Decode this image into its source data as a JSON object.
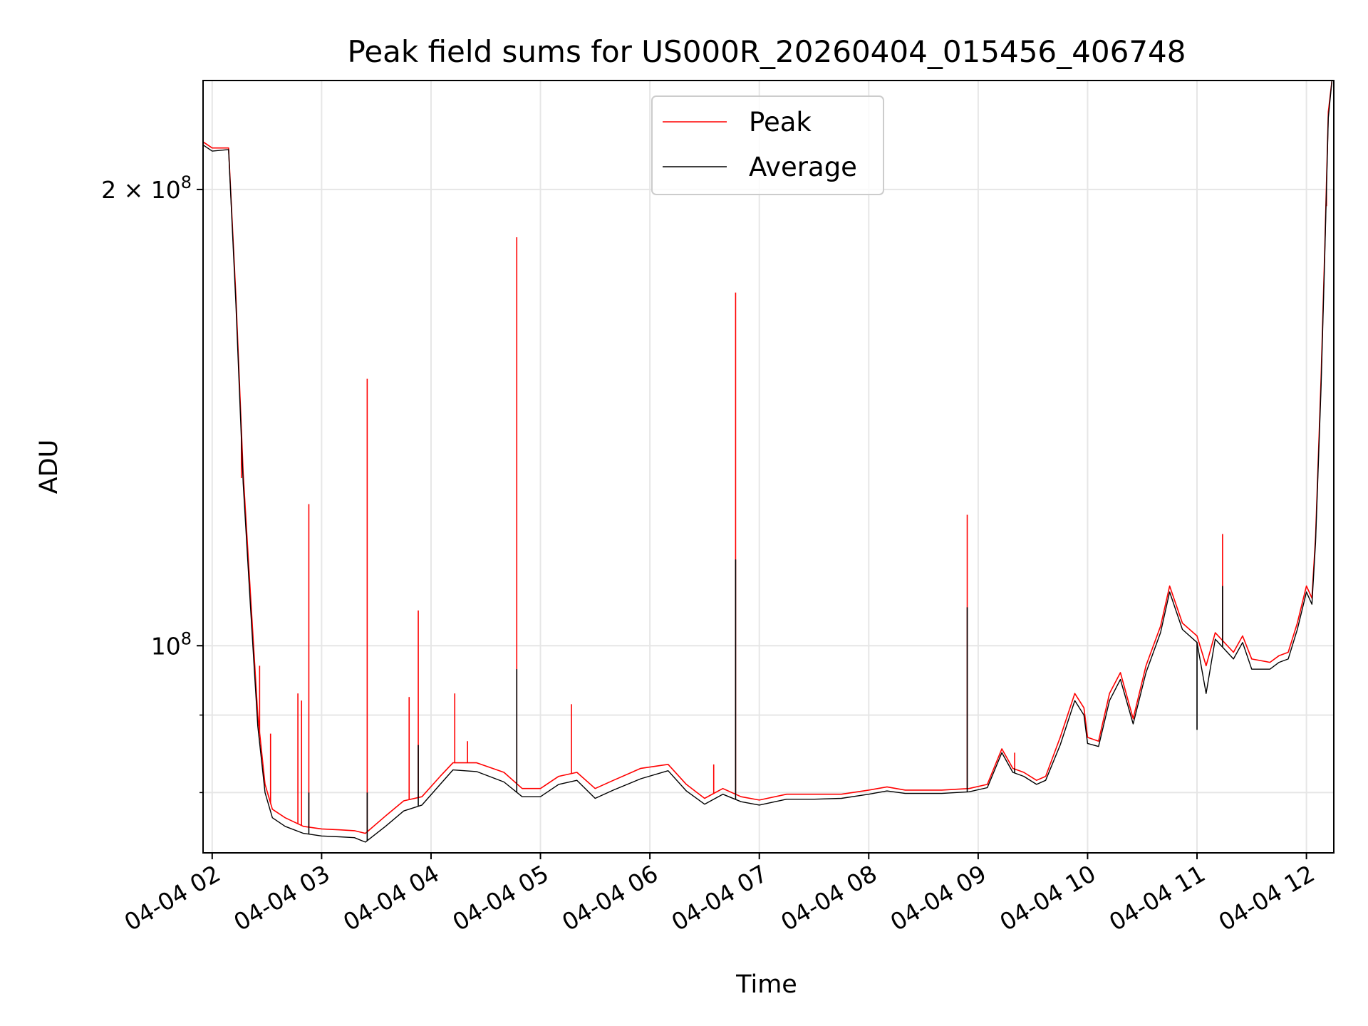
{
  "chart_data": {
    "type": "line",
    "title": "Peak field sums for US000R_20260404_015456_406748",
    "xlabel": "Time",
    "ylabel": "ADU",
    "yscale": "log",
    "grid": true,
    "legend_position": "top-center",
    "x_range": [
      "2026-04-04 01:55",
      "2026-04-04 12:15"
    ],
    "ylim": [
      73000000,
      236000000
    ],
    "x_ticks": [
      {
        "value": "2026-04-04 02:00",
        "label": "04-04 02"
      },
      {
        "value": "2026-04-04 03:00",
        "label": "04-04 03"
      },
      {
        "value": "2026-04-04 04:00",
        "label": "04-04 04"
      },
      {
        "value": "2026-04-04 05:00",
        "label": "04-04 05"
      },
      {
        "value": "2026-04-04 06:00",
        "label": "04-04 06"
      },
      {
        "value": "2026-04-04 07:00",
        "label": "04-04 07"
      },
      {
        "value": "2026-04-04 08:00",
        "label": "04-04 08"
      },
      {
        "value": "2026-04-04 09:00",
        "label": "04-04 09"
      },
      {
        "value": "2026-04-04 10:00",
        "label": "04-04 10"
      },
      {
        "value": "2026-04-04 11:00",
        "label": "04-04 11"
      },
      {
        "value": "2026-04-04 12:00",
        "label": "04-04 12"
      }
    ],
    "y_major_ticks": [
      {
        "value": 100000000,
        "base": "10",
        "exp": "8",
        "coef": ""
      },
      {
        "value": 200000000,
        "base": "10",
        "exp": "8",
        "coef": "2 × "
      }
    ],
    "y_minor_ticks": [
      80000000,
      90000000
    ],
    "series": [
      {
        "name": "Peak",
        "color": "#ff0000",
        "baseline": [
          [
            "2026-04-04 01:55",
            215000000
          ],
          [
            "2026-04-04 02:00",
            213000000
          ],
          [
            "2026-04-04 02:09",
            213000000
          ],
          [
            "2026-04-04 02:13",
            170000000
          ],
          [
            "2026-04-04 02:17",
            130000000
          ],
          [
            "2026-04-04 02:21",
            108000000
          ],
          [
            "2026-04-04 02:25",
            90000000
          ],
          [
            "2026-04-04 02:29",
            81000000
          ],
          [
            "2026-04-04 02:33",
            78000000
          ],
          [
            "2026-04-04 02:40",
            77000000
          ],
          [
            "2026-04-04 02:50",
            76000000
          ],
          [
            "2026-04-04 03:00",
            75700000
          ],
          [
            "2026-04-04 03:10",
            75600000
          ],
          [
            "2026-04-04 03:18",
            75500000
          ],
          [
            "2026-04-04 03:24",
            75200000
          ],
          [
            "2026-04-04 03:35",
            77200000
          ],
          [
            "2026-04-04 03:45",
            79000000
          ],
          [
            "2026-04-04 03:55",
            79500000
          ],
          [
            "2026-04-04 04:05",
            82000000
          ],
          [
            "2026-04-04 04:12",
            83700000
          ],
          [
            "2026-04-04 04:25",
            83700000
          ],
          [
            "2026-04-04 04:40",
            82500000
          ],
          [
            "2026-04-04 04:50",
            80500000
          ],
          [
            "2026-04-04 05:00",
            80500000
          ],
          [
            "2026-04-04 05:10",
            82000000
          ],
          [
            "2026-04-04 05:20",
            82500000
          ],
          [
            "2026-04-04 05:30",
            80500000
          ],
          [
            "2026-04-04 05:40",
            81500000
          ],
          [
            "2026-04-04 05:55",
            83000000
          ],
          [
            "2026-04-04 06:10",
            83500000
          ],
          [
            "2026-04-04 06:20",
            81000000
          ],
          [
            "2026-04-04 06:30",
            79300000
          ],
          [
            "2026-04-04 06:40",
            80500000
          ],
          [
            "2026-04-04 06:50",
            79500000
          ],
          [
            "2026-04-04 07:00",
            79100000
          ],
          [
            "2026-04-04 07:15",
            79800000
          ],
          [
            "2026-04-04 07:30",
            79800000
          ],
          [
            "2026-04-04 07:45",
            79800000
          ],
          [
            "2026-04-04 08:00",
            80300000
          ],
          [
            "2026-04-04 08:10",
            80700000
          ],
          [
            "2026-04-04 08:20",
            80300000
          ],
          [
            "2026-04-04 08:40",
            80300000
          ],
          [
            "2026-04-04 08:55",
            80500000
          ],
          [
            "2026-04-04 09:05",
            81000000
          ],
          [
            "2026-04-04 09:13",
            85500000
          ],
          [
            "2026-04-04 09:19",
            83000000
          ],
          [
            "2026-04-04 09:25",
            82500000
          ],
          [
            "2026-04-04 09:32",
            81500000
          ],
          [
            "2026-04-04 09:37",
            82000000
          ],
          [
            "2026-04-04 09:45",
            87000000
          ],
          [
            "2026-04-04 09:53",
            93000000
          ],
          [
            "2026-04-04 09:58",
            91000000
          ],
          [
            "2026-04-04 10:00",
            87000000
          ],
          [
            "2026-04-04 10:06",
            86500000
          ],
          [
            "2026-04-04 10:12",
            93000000
          ],
          [
            "2026-04-04 10:18",
            96000000
          ],
          [
            "2026-04-04 10:25",
            89500000
          ],
          [
            "2026-04-04 10:32",
            97000000
          ],
          [
            "2026-04-04 10:40",
            103000000
          ],
          [
            "2026-04-04 10:45",
            109500000
          ],
          [
            "2026-04-04 10:52",
            103500000
          ],
          [
            "2026-04-04 11:00",
            101500000
          ],
          [
            "2026-04-04 11:05",
            97000000
          ],
          [
            "2026-04-04 11:10",
            102000000
          ],
          [
            "2026-04-04 11:20",
            99000000
          ],
          [
            "2026-04-04 11:25",
            101500000
          ],
          [
            "2026-04-04 11:30",
            98000000
          ],
          [
            "2026-04-04 11:40",
            97500000
          ],
          [
            "2026-04-04 11:45",
            98500000
          ],
          [
            "2026-04-04 11:50",
            99000000
          ],
          [
            "2026-04-04 11:55",
            103500000
          ],
          [
            "2026-04-04 12:00",
            109500000
          ],
          [
            "2026-04-04 12:03",
            107500000
          ],
          [
            "2026-04-04 12:05",
            118000000
          ],
          [
            "2026-04-04 12:08",
            150000000
          ],
          [
            "2026-04-04 12:10",
            182000000
          ],
          [
            "2026-04-04 12:12",
            225000000
          ],
          [
            "2026-04-04 12:14",
            236000000
          ],
          [
            "2026-04-04 12:15",
            236000000
          ]
        ],
        "spikes": [
          [
            "2026-04-04 02:16",
            129000000
          ],
          [
            "2026-04-04 02:26",
            97000000
          ],
          [
            "2026-04-04 02:32",
            87500000
          ],
          [
            "2026-04-04 02:47",
            93000000
          ],
          [
            "2026-04-04 02:49",
            92000000
          ],
          [
            "2026-04-04 02:53",
            124000000
          ],
          [
            "2026-04-04 03:25",
            150000000
          ],
          [
            "2026-04-04 03:48",
            92500000
          ],
          [
            "2026-04-04 03:53",
            105500000
          ],
          [
            "2026-04-04 04:13",
            93000000
          ],
          [
            "2026-04-04 04:20",
            86500000
          ],
          [
            "2026-04-04 04:47",
            186000000
          ],
          [
            "2026-04-04 05:17",
            91500000
          ],
          [
            "2026-04-04 06:35",
            83500000
          ],
          [
            "2026-04-04 06:47",
            171000000
          ],
          [
            "2026-04-04 08:54",
            122000000
          ],
          [
            "2026-04-04 09:20",
            85000000
          ],
          [
            "2026-04-04 11:14",
            118500000
          ],
          [
            "2026-04-04 12:11",
            195000000
          ]
        ]
      },
      {
        "name": "Average",
        "color": "#000000",
        "baseline": [
          [
            "2026-04-04 01:55",
            214000000
          ],
          [
            "2026-04-04 02:00",
            212000000
          ],
          [
            "2026-04-04 02:09",
            212500000
          ],
          [
            "2026-04-04 02:13",
            168000000
          ],
          [
            "2026-04-04 02:17",
            128000000
          ],
          [
            "2026-04-04 02:21",
            106000000
          ],
          [
            "2026-04-04 02:25",
            88500000
          ],
          [
            "2026-04-04 02:29",
            80000000
          ],
          [
            "2026-04-04 02:33",
            77000000
          ],
          [
            "2026-04-04 02:40",
            76000000
          ],
          [
            "2026-04-04 02:50",
            75200000
          ],
          [
            "2026-04-04 03:00",
            74900000
          ],
          [
            "2026-04-04 03:10",
            74800000
          ],
          [
            "2026-04-04 03:18",
            74700000
          ],
          [
            "2026-04-04 03:24",
            74200000
          ],
          [
            "2026-04-04 03:35",
            76000000
          ],
          [
            "2026-04-04 03:45",
            77800000
          ],
          [
            "2026-04-04 03:55",
            78500000
          ],
          [
            "2026-04-04 04:05",
            81000000
          ],
          [
            "2026-04-04 04:12",
            82800000
          ],
          [
            "2026-04-04 04:25",
            82600000
          ],
          [
            "2026-04-04 04:40",
            81300000
          ],
          [
            "2026-04-04 04:50",
            79500000
          ],
          [
            "2026-04-04 05:00",
            79500000
          ],
          [
            "2026-04-04 05:10",
            81000000
          ],
          [
            "2026-04-04 05:20",
            81500000
          ],
          [
            "2026-04-04 05:30",
            79300000
          ],
          [
            "2026-04-04 05:40",
            80300000
          ],
          [
            "2026-04-04 05:55",
            81700000
          ],
          [
            "2026-04-04 06:10",
            82700000
          ],
          [
            "2026-04-04 06:20",
            80200000
          ],
          [
            "2026-04-04 06:30",
            78600000
          ],
          [
            "2026-04-04 06:40",
            79800000
          ],
          [
            "2026-04-04 06:50",
            78900000
          ],
          [
            "2026-04-04 07:00",
            78500000
          ],
          [
            "2026-04-04 07:15",
            79200000
          ],
          [
            "2026-04-04 07:30",
            79200000
          ],
          [
            "2026-04-04 07:45",
            79300000
          ],
          [
            "2026-04-04 08:00",
            79800000
          ],
          [
            "2026-04-04 08:10",
            80200000
          ],
          [
            "2026-04-04 08:20",
            79900000
          ],
          [
            "2026-04-04 08:40",
            79900000
          ],
          [
            "2026-04-04 08:55",
            80100000
          ],
          [
            "2026-04-04 09:05",
            80600000
          ],
          [
            "2026-04-04 09:13",
            85000000
          ],
          [
            "2026-04-04 09:19",
            82500000
          ],
          [
            "2026-04-04 09:25",
            82000000
          ],
          [
            "2026-04-04 09:32",
            81000000
          ],
          [
            "2026-04-04 09:37",
            81500000
          ],
          [
            "2026-04-04 09:45",
            86000000
          ],
          [
            "2026-04-04 09:53",
            92000000
          ],
          [
            "2026-04-04 09:58",
            90000000
          ],
          [
            "2026-04-04 10:00",
            86200000
          ],
          [
            "2026-04-04 10:06",
            85800000
          ],
          [
            "2026-04-04 10:12",
            92000000
          ],
          [
            "2026-04-04 10:18",
            95000000
          ],
          [
            "2026-04-04 10:25",
            88800000
          ],
          [
            "2026-04-04 10:32",
            96000000
          ],
          [
            "2026-04-04 10:40",
            102000000
          ],
          [
            "2026-04-04 10:45",
            108500000
          ],
          [
            "2026-04-04 10:52",
            102500000
          ],
          [
            "2026-04-04 11:00",
            100500000
          ],
          [
            "2026-04-04 11:05",
            93000000
          ],
          [
            "2026-04-04 11:10",
            101000000
          ],
          [
            "2026-04-04 11:20",
            98000000
          ],
          [
            "2026-04-04 11:25",
            100500000
          ],
          [
            "2026-04-04 11:30",
            96500000
          ],
          [
            "2026-04-04 11:40",
            96500000
          ],
          [
            "2026-04-04 11:45",
            97500000
          ],
          [
            "2026-04-04 11:50",
            98000000
          ],
          [
            "2026-04-04 11:55",
            102500000
          ],
          [
            "2026-04-04 12:00",
            108500000
          ],
          [
            "2026-04-04 12:03",
            106500000
          ],
          [
            "2026-04-04 12:05",
            117000000
          ],
          [
            "2026-04-04 12:08",
            148000000
          ],
          [
            "2026-04-04 12:10",
            180000000
          ],
          [
            "2026-04-04 12:12",
            223000000
          ],
          [
            "2026-04-04 12:14",
            236000000
          ],
          [
            "2026-04-04 12:15",
            236000000
          ]
        ],
        "spikes": [
          [
            "2026-04-04 02:53",
            80000000
          ],
          [
            "2026-04-04 03:25",
            80000000
          ],
          [
            "2026-04-04 03:53",
            86000000
          ],
          [
            "2026-04-04 04:47",
            96500000
          ],
          [
            "2026-04-04 06:47",
            114000000
          ],
          [
            "2026-04-04 08:54",
            106000000
          ],
          [
            "2026-04-04 09:20",
            83000000
          ],
          [
            "2026-04-04 11:00",
            88000000
          ],
          [
            "2026-04-04 11:14",
            109500000
          ]
        ]
      }
    ]
  }
}
